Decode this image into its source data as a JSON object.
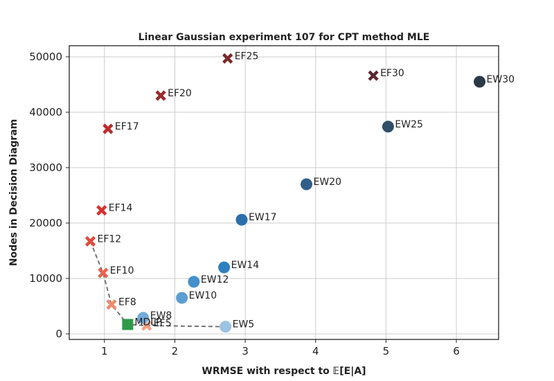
{
  "chart_data": {
    "type": "scatter",
    "title": "Linear Gaussian experiment 107 for CPT method MLE",
    "xlabel": "WRMSE with respect to 𝔼[E|A]",
    "ylabel": "Nodes in Decision Diagram",
    "xlim": [
      0.5,
      6.6
    ],
    "ylim": [
      -1000,
      52000
    ],
    "xticks": [
      1,
      2,
      3,
      4,
      5,
      6
    ],
    "yticks": [
      0,
      10000,
      20000,
      30000,
      40000,
      50000
    ],
    "grid": true,
    "series": [
      {
        "marker": "x",
        "points": [
          {
            "label": "EF5",
            "x": 1.6,
            "y": 1500,
            "color": "#f4a085"
          },
          {
            "label": "EF8",
            "x": 1.1,
            "y": 5300,
            "color": "#ee8a6c"
          },
          {
            "label": "EF10",
            "x": 0.98,
            "y": 11000,
            "color": "#e8634e"
          },
          {
            "label": "EF12",
            "x": 0.8,
            "y": 16700,
            "color": "#e04a3c"
          },
          {
            "label": "EF14",
            "x": 0.96,
            "y": 22300,
            "color": "#d8312e"
          },
          {
            "label": "EF17",
            "x": 1.05,
            "y": 37000,
            "color": "#bf2a2a"
          },
          {
            "label": "EF20",
            "x": 1.8,
            "y": 43000,
            "color": "#9c2a2a"
          },
          {
            "label": "EF25",
            "x": 2.75,
            "y": 49700,
            "color": "#7a2a2a"
          },
          {
            "label": "EF30",
            "x": 4.82,
            "y": 46600,
            "color": "#5a2a2e"
          }
        ]
      },
      {
        "marker": "circle",
        "points": [
          {
            "label": "EW5",
            "x": 2.72,
            "y": 1300,
            "color": "#9cc3e3"
          },
          {
            "label": "EW8",
            "x": 1.55,
            "y": 2900,
            "color": "#73acd8"
          },
          {
            "label": "EW10",
            "x": 2.1,
            "y": 6500,
            "color": "#5b9ed2"
          },
          {
            "label": "EW12",
            "x": 2.27,
            "y": 9400,
            "color": "#4491cc"
          },
          {
            "label": "EW14",
            "x": 2.7,
            "y": 12000,
            "color": "#2e7fc0"
          },
          {
            "label": "EW17",
            "x": 2.95,
            "y": 20600,
            "color": "#2a6fab"
          },
          {
            "label": "EW20",
            "x": 3.87,
            "y": 27000,
            "color": "#2f5f8a"
          },
          {
            "label": "EW25",
            "x": 5.03,
            "y": 37400,
            "color": "#2f4f6a"
          },
          {
            "label": "EW30",
            "x": 6.33,
            "y": 45500,
            "color": "#2c3a48"
          }
        ]
      },
      {
        "marker": "square",
        "points": [
          {
            "label": "MDLP",
            "x": 1.33,
            "y": 1700,
            "color": "#2e9a4a"
          }
        ]
      }
    ],
    "frontier_line": {
      "color": "#666666",
      "style": "dashed",
      "points": [
        {
          "x": 0.8,
          "y": 16700
        },
        {
          "x": 0.98,
          "y": 11000
        },
        {
          "x": 1.1,
          "y": 5300
        },
        {
          "x": 1.33,
          "y": 1700
        },
        {
          "x": 1.6,
          "y": 1500
        },
        {
          "x": 2.72,
          "y": 1300
        }
      ]
    }
  }
}
